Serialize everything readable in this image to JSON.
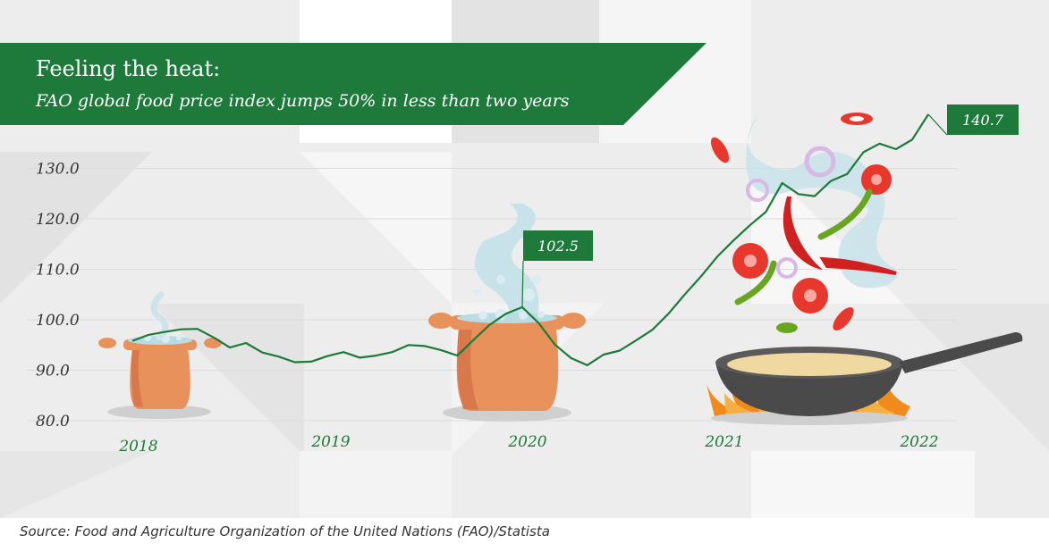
{
  "header": {
    "title": "Feeling the heat:",
    "subtitle": "FAO global food price index jumps 50% in less than two years"
  },
  "source": "Source: Food and Agriculture Organization of the United Nations (FAO)/Statista",
  "colors": {
    "brand_green": "#1d7a3a",
    "line": "#1d7a3a",
    "pot": "#e8915a",
    "pan": "#5a5a5a",
    "flame": "#f08a1c",
    "steam": "#b9dbe3"
  },
  "illustrations": [
    "pot-icon",
    "steam-icon",
    "frying-pan-icon",
    "flame-icon",
    "tomato-icon",
    "chili-icon",
    "onion-ring-icon"
  ],
  "chart_data": {
    "type": "line",
    "title": "Feeling the heat:",
    "subtitle": "FAO global food price index jumps 50% in less than two years",
    "ylim": [
      80,
      135
    ],
    "yticks": [
      "80.0",
      "90.0",
      "100.0",
      "110.0",
      "120.0",
      "130.0"
    ],
    "xticks": [
      "2018",
      "2019",
      "2020",
      "2021",
      "2022"
    ],
    "grid": true,
    "series": [
      {
        "values": [
          {
            "x": 2018.0,
            "y": 95.8
          },
          {
            "x": 2018.083,
            "y": 97.0
          },
          {
            "x": 2018.167,
            "y": 97.6
          },
          {
            "x": 2018.25,
            "y": 98.1
          },
          {
            "x": 2018.333,
            "y": 98.2
          },
          {
            "x": 2018.417,
            "y": 96.5
          },
          {
            "x": 2018.5,
            "y": 94.5
          },
          {
            "x": 2018.583,
            "y": 95.4
          },
          {
            "x": 2018.667,
            "y": 93.5
          },
          {
            "x": 2018.75,
            "y": 92.7
          },
          {
            "x": 2018.833,
            "y": 91.6
          },
          {
            "x": 2018.917,
            "y": 91.7
          },
          {
            "x": 2019.0,
            "y": 92.8
          },
          {
            "x": 2019.083,
            "y": 93.6
          },
          {
            "x": 2019.167,
            "y": 92.5
          },
          {
            "x": 2019.25,
            "y": 92.9
          },
          {
            "x": 2019.333,
            "y": 93.6
          },
          {
            "x": 2019.417,
            "y": 95.0
          },
          {
            "x": 2019.5,
            "y": 94.8
          },
          {
            "x": 2019.583,
            "y": 94.0
          },
          {
            "x": 2019.667,
            "y": 92.9
          },
          {
            "x": 2019.75,
            "y": 96.0
          },
          {
            "x": 2019.833,
            "y": 99.0
          },
          {
            "x": 2019.917,
            "y": 101.2
          },
          {
            "x": 2020.0,
            "y": 102.5
          },
          {
            "x": 2020.083,
            "y": 99.4
          },
          {
            "x": 2020.167,
            "y": 95.1
          },
          {
            "x": 2020.25,
            "y": 92.4
          },
          {
            "x": 2020.333,
            "y": 91.0
          },
          {
            "x": 2020.417,
            "y": 93.1
          },
          {
            "x": 2020.5,
            "y": 93.9
          },
          {
            "x": 2020.583,
            "y": 95.9
          },
          {
            "x": 2020.667,
            "y": 98.0
          },
          {
            "x": 2020.75,
            "y": 101.2
          },
          {
            "x": 2020.833,
            "y": 105.0
          },
          {
            "x": 2020.917,
            "y": 108.6
          },
          {
            "x": 2021.0,
            "y": 112.5
          },
          {
            "x": 2021.083,
            "y": 115.7
          },
          {
            "x": 2021.167,
            "y": 118.7
          },
          {
            "x": 2021.25,
            "y": 121.4
          },
          {
            "x": 2021.333,
            "y": 127.1
          },
          {
            "x": 2021.417,
            "y": 124.9
          },
          {
            "x": 2021.5,
            "y": 124.5
          },
          {
            "x": 2021.583,
            "y": 127.5
          },
          {
            "x": 2021.667,
            "y": 128.9
          },
          {
            "x": 2021.75,
            "y": 133.2
          },
          {
            "x": 2021.833,
            "y": 134.9
          },
          {
            "x": 2021.917,
            "y": 133.8
          },
          {
            "x": 2022.0,
            "y": 135.7
          },
          {
            "x": 2022.083,
            "y": 140.7
          }
        ]
      }
    ],
    "annotations": [
      {
        "x": 2020.0,
        "y": 102.5,
        "text": "102.5"
      },
      {
        "x": 2022.083,
        "y": 140.7,
        "text": "140.7"
      }
    ]
  }
}
